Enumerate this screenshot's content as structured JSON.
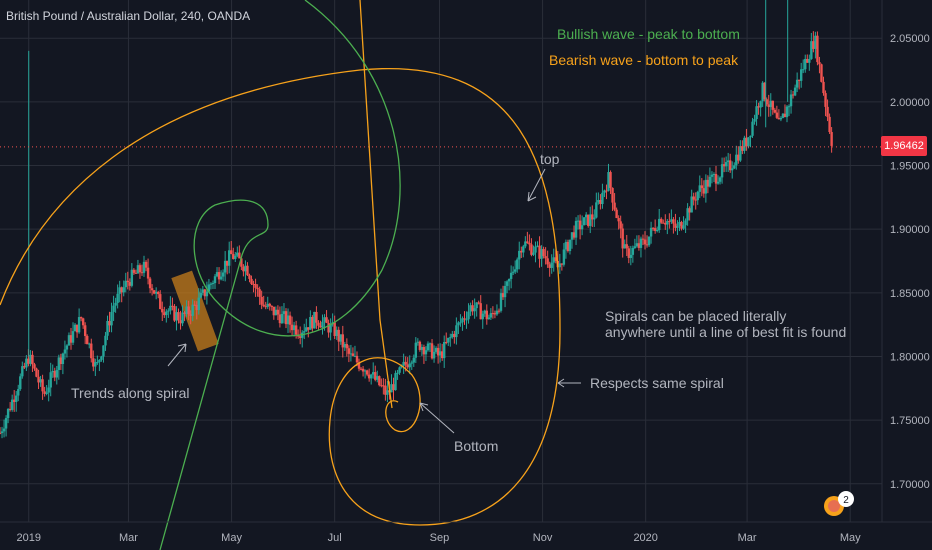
{
  "header": {
    "symbol": "British Pound / Australian Dollar, 240, OANDA"
  },
  "price_label": {
    "value": "1.96462",
    "color": "#f23645"
  },
  "badge": {
    "count": "2"
  },
  "colors": {
    "background": "#131722",
    "grid": "#2a2e39",
    "up": "#26a69a",
    "down": "#ef5350",
    "bull_spiral": "#4caf50",
    "bear_spiral": "#f7a21b",
    "text": "#b2b5be",
    "highlight": "#c77d1b"
  },
  "annotations": [
    {
      "id": "legend-bullish",
      "text": "Bullish wave - peak to bottom",
      "color": "#4caf50"
    },
    {
      "id": "legend-bearish",
      "text": "Bearish wave - bottom to peak",
      "color": "#f7a21b"
    },
    {
      "id": "label-top",
      "text": "top",
      "color": "#b2b5be"
    },
    {
      "id": "label-trends",
      "text": "Trends along spiral",
      "color": "#b2b5be"
    },
    {
      "id": "label-bottom",
      "text": "Bottom",
      "color": "#b2b5be"
    },
    {
      "id": "label-respects",
      "text": "Respects same spiral",
      "color": "#b2b5be"
    },
    {
      "id": "label-spirals-1",
      "text": "Spirals can be placed literally",
      "color": "#b2b5be"
    },
    {
      "id": "label-spirals-2",
      "text": "anywhere until a line of best fit is found",
      "color": "#b2b5be"
    }
  ],
  "chart_data": {
    "type": "line",
    "title": "British Pound / Australian Dollar, 240, OANDA",
    "xlabel": "",
    "ylabel": "",
    "x_ticks": [
      "2019",
      "Mar",
      "May",
      "Jul",
      "Sep",
      "Nov",
      "2020",
      "Mar",
      "May"
    ],
    "y_ticks": [
      "1.70000",
      "1.75000",
      "1.80000",
      "1.85000",
      "1.90000",
      "1.95000",
      "2.00000",
      "2.05000"
    ],
    "ylim": [
      1.67,
      2.08
    ],
    "last_price": 1.96462,
    "grid": true,
    "series": [
      {
        "x": [
          "2018-12-15",
          "2019-01-01",
          "2019-01-10",
          "2019-01-20",
          "2019-02-01",
          "2019-02-10",
          "2019-02-20",
          "2019-03-01",
          "2019-03-10",
          "2019-03-20",
          "2019-04-01",
          "2019-04-10",
          "2019-04-20",
          "2019-05-01",
          "2019-05-10",
          "2019-05-20",
          "2019-06-01",
          "2019-06-10",
          "2019-06-20",
          "2019-07-01",
          "2019-07-10",
          "2019-07-20",
          "2019-08-01",
          "2019-08-10",
          "2019-08-20",
          "2019-09-01",
          "2019-09-10",
          "2019-09-20",
          "2019-10-01",
          "2019-10-10",
          "2019-10-20",
          "2019-11-01",
          "2019-11-10",
          "2019-11-20",
          "2019-12-01",
          "2019-12-10",
          "2019-12-20",
          "2020-01-01",
          "2020-01-10",
          "2020-01-20",
          "2020-02-01",
          "2020-02-10",
          "2020-02-20",
          "2020-03-01",
          "2020-03-10",
          "2020-03-20",
          "2020-04-01",
          "2020-04-10",
          "2020-04-20"
        ],
        "values": [
          1.74,
          1.8,
          1.77,
          1.8,
          1.83,
          1.79,
          1.84,
          1.86,
          1.87,
          1.84,
          1.83,
          1.84,
          1.86,
          1.88,
          1.87,
          1.84,
          1.83,
          1.82,
          1.83,
          1.82,
          1.8,
          1.79,
          1.77,
          1.79,
          1.81,
          1.8,
          1.82,
          1.84,
          1.83,
          1.85,
          1.89,
          1.88,
          1.87,
          1.9,
          1.91,
          1.94,
          1.88,
          1.89,
          1.91,
          1.9,
          1.93,
          1.94,
          1.95,
          1.97,
          2.01,
          1.98,
          2.02,
          2.05,
          1.97
        ]
      }
    ]
  }
}
